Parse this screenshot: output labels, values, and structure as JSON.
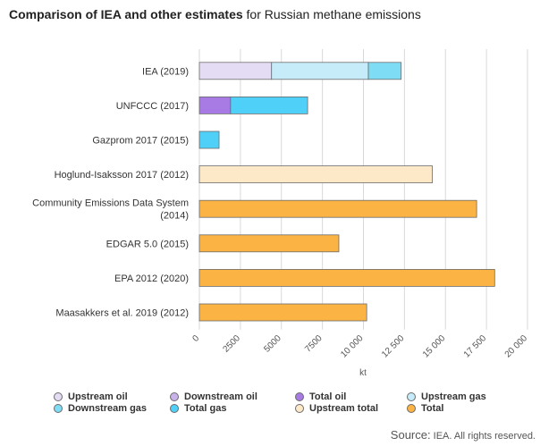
{
  "header": {
    "title_bold": "Comparison of IEA and other estimates",
    "title_rest": " for Russian methane emissions"
  },
  "chart_data": {
    "type": "bar",
    "orientation": "horizontal",
    "stacked": true,
    "xlabel": "kt",
    "xlim": [
      0,
      20000
    ],
    "xticks": [
      0,
      2500,
      5000,
      7500,
      10000,
      12500,
      15000,
      17500,
      20000
    ],
    "xtick_labels": [
      "0",
      "2500",
      "5000",
      "7500",
      "10 000",
      "12 500",
      "15 000",
      "17 500",
      "20 000"
    ],
    "categories": [
      [
        "IEA (2019)"
      ],
      [
        "UNFCCC (2017)"
      ],
      [
        "Gazprom 2017 (2015)"
      ],
      [
        "Hoglund-Isaksson 2017 (2012)"
      ],
      [
        "Community Emissions Data System",
        "(2014)"
      ],
      [
        "EDGAR 5.0 (2015)"
      ],
      [
        "EPA 2012 (2020)"
      ],
      [
        "Maasakkers et al. 2019 (2012)"
      ]
    ],
    "series": [
      {
        "name": "Upstream oil",
        "color": "#e4dcf4",
        "values": [
          4400,
          0,
          0,
          0,
          0,
          0,
          0,
          0
        ]
      },
      {
        "name": "Downstream oil",
        "color": "#c9b2ea",
        "values": [
          0,
          0,
          0,
          0,
          0,
          0,
          0,
          0
        ]
      },
      {
        "name": "Total oil",
        "color": "#a77be3",
        "values": [
          0,
          1900,
          0,
          0,
          0,
          0,
          0,
          0
        ]
      },
      {
        "name": "Upstream gas",
        "color": "#c7ecf9",
        "values": [
          5900,
          0,
          0,
          0,
          0,
          0,
          0,
          0
        ]
      },
      {
        "name": "Downstream gas",
        "color": "#7edcf5",
        "values": [
          2000,
          0,
          0,
          0,
          0,
          0,
          0,
          0
        ]
      },
      {
        "name": "Total gas",
        "color": "#4fd0f8",
        "values": [
          0,
          4700,
          1200,
          0,
          0,
          0,
          0,
          0
        ]
      },
      {
        "name": "Upstream total",
        "color": "#fde8c8",
        "values": [
          0,
          0,
          0,
          14200,
          0,
          0,
          0,
          0
        ]
      },
      {
        "name": "Total",
        "color": "#fbb343",
        "values": [
          0,
          0,
          0,
          0,
          16900,
          8500,
          18000,
          10200
        ]
      }
    ],
    "grid": true,
    "legend_position": "bottom"
  },
  "legend": {
    "items": [
      {
        "label": "Upstream oil",
        "color": "#e4dcf4"
      },
      {
        "label": "Downstream oil",
        "color": "#c9b2ea"
      },
      {
        "label": "Total oil",
        "color": "#a77be3"
      },
      {
        "label": "Upstream gas",
        "color": "#c7ecf9"
      },
      {
        "label": "Downstream gas",
        "color": "#7edcf5"
      },
      {
        "label": "Total gas",
        "color": "#4fd0f8"
      },
      {
        "label": "Upstream total",
        "color": "#fde8c8"
      },
      {
        "label": "Total",
        "color": "#fbb343"
      }
    ]
  },
  "footer": {
    "source_label": "Source:",
    "source_text": " IEA. All rights reserved."
  }
}
